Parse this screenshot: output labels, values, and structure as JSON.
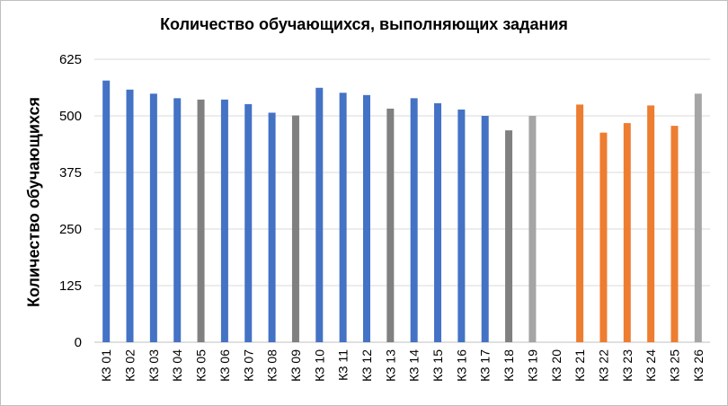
{
  "chart_data": {
    "type": "bar",
    "title": "Количество обучающихся, выполняющих задания",
    "xlabel": "",
    "ylabel": "Количество обучающихся",
    "ylim": [
      0,
      625
    ],
    "yticks": [
      0,
      125,
      250,
      375,
      500,
      625
    ],
    "grid": true,
    "categories": [
      "КЗ 01",
      "КЗ 02",
      "КЗ 03",
      "КЗ 04",
      "КЗ 05",
      "КЗ 06",
      "КЗ 07",
      "КЗ 08",
      "КЗ 09",
      "КЗ 10",
      "КЗ 11",
      "КЗ 12",
      "КЗ 13",
      "КЗ 14",
      "КЗ 15",
      "КЗ 16",
      "КЗ 17",
      "КЗ 18",
      "КЗ 19",
      "КЗ 20",
      "КЗ 21",
      "КЗ 22",
      "КЗ 23",
      "КЗ 24",
      "КЗ 25",
      "КЗ 26"
    ],
    "values": [
      578,
      558,
      549,
      539,
      536,
      536,
      526,
      507,
      501,
      562,
      551,
      546,
      516,
      539,
      528,
      514,
      500,
      468,
      500,
      null,
      525,
      463,
      484,
      523,
      478,
      549
    ],
    "bar_colors": [
      "#4472c4",
      "#4472c4",
      "#4472c4",
      "#4472c4",
      "#808080",
      "#4472c4",
      "#4472c4",
      "#4472c4",
      "#808080",
      "#4472c4",
      "#4472c4",
      "#4472c4",
      "#808080",
      "#4472c4",
      "#4472c4",
      "#4472c4",
      "#4472c4",
      "#808080",
      "#a5a5a5",
      "#a5a5a5",
      "#ed7d31",
      "#ed7d31",
      "#ed7d31",
      "#ed7d31",
      "#ed7d31",
      "#a5a5a5"
    ],
    "colors": {
      "blue": "#4472c4",
      "gray": "#808080",
      "light_gray": "#a5a5a5",
      "orange": "#ed7d31",
      "gridline": "#d9d9d9"
    }
  }
}
